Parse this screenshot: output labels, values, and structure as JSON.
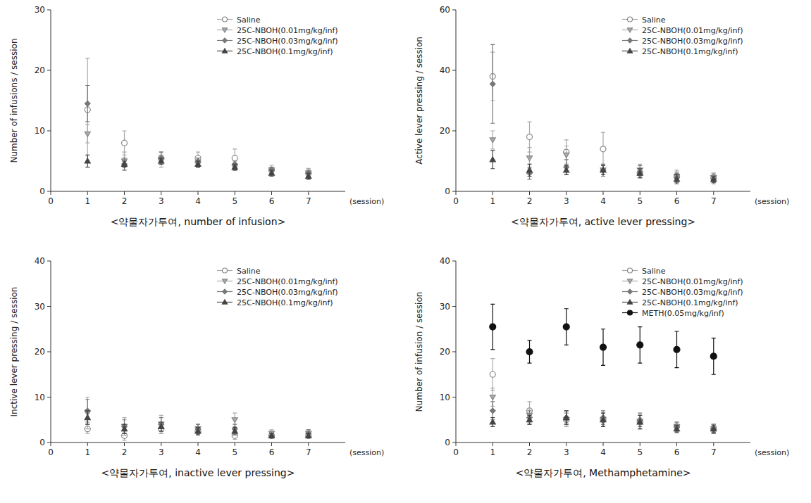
{
  "chart_data": [
    {
      "type": "scatter",
      "title": "<약물자가투여,  number  of  infusion>",
      "xlabel": "(session)",
      "ylabel": "Number of infusions / session",
      "x": [
        1,
        2,
        3,
        4,
        5,
        6,
        7
      ],
      "xlim": [
        0,
        8
      ],
      "xticks": [
        0,
        1,
        2,
        3,
        4,
        5,
        6,
        7
      ],
      "ylim": [
        0,
        30
      ],
      "yticks": [
        0,
        10,
        20,
        30
      ],
      "grid": false,
      "legend": "upper right",
      "series": [
        {
          "name": "Saline",
          "color": "#aaaaaa",
          "marker": "circle-open",
          "values": [
            13.5,
            8.0,
            5.5,
            5.5,
            5.5,
            3.5,
            3.0
          ],
          "errors": [
            8.5,
            2.0,
            1.0,
            1.0,
            1.5,
            0.8,
            0.8
          ]
        },
        {
          "name": "25C-NBOH(0.01mg/kg/inf)",
          "color": "#aaaaaa",
          "marker": "triangle-down",
          "values": [
            9.5,
            5.0,
            5.0,
            4.5,
            4.0,
            3.5,
            3.0
          ],
          "errors": [
            1.5,
            1.5,
            1.0,
            0.5,
            0.5,
            0.5,
            0.5
          ]
        },
        {
          "name": "25C-NBOH(0.03mg/kg/inf)",
          "color": "#777777",
          "marker": "diamond",
          "values": [
            14.5,
            4.5,
            5.5,
            5.0,
            4.5,
            3.5,
            3.0
          ],
          "errors": [
            3.0,
            1.0,
            1.0,
            0.5,
            0.5,
            0.5,
            0.5
          ]
        },
        {
          "name": "25C-NBOH(0.1mg/kg/inf)",
          "color": "#444444",
          "marker": "triangle-up",
          "values": [
            5.0,
            4.5,
            5.0,
            4.5,
            4.0,
            3.0,
            2.5
          ],
          "errors": [
            1.0,
            0.5,
            0.5,
            0.5,
            0.5,
            0.5,
            0.5
          ]
        }
      ]
    },
    {
      "type": "scatter",
      "title": "<약물자가투여,  active  lever  pressing>",
      "xlabel": "(session)",
      "ylabel": "Active lever pressing / session",
      "x": [
        1,
        2,
        3,
        4,
        5,
        6,
        7
      ],
      "xlim": [
        0,
        8
      ],
      "xticks": [
        0,
        1,
        2,
        3,
        4,
        5,
        6,
        7
      ],
      "ylim": [
        0,
        60
      ],
      "yticks": [
        0,
        20,
        40,
        60
      ],
      "grid": false,
      "legend": "upper right",
      "series": [
        {
          "name": "Saline",
          "color": "#aaaaaa",
          "marker": "circle-open",
          "values": [
            38.0,
            18.0,
            13.0,
            14.0,
            6.0,
            5.0,
            4.5
          ],
          "errors": [
            8.0,
            5.0,
            4.0,
            5.5,
            1.5,
            2.0,
            1.5
          ]
        },
        {
          "name": "25C-NBOH(0.01mg/kg/inf)",
          "color": "#aaaaaa",
          "marker": "triangle-down",
          "values": [
            17.0,
            11.0,
            12.0,
            7.0,
            7.0,
            5.0,
            4.5
          ],
          "errors": [
            3.0,
            3.5,
            3.0,
            2.0,
            2.0,
            1.5,
            1.5
          ]
        },
        {
          "name": "25C-NBOH(0.03mg/kg/inf)",
          "color": "#777777",
          "marker": "diamond",
          "values": [
            35.5,
            6.0,
            8.0,
            7.0,
            6.5,
            4.5,
            4.0
          ],
          "errors": [
            13.0,
            2.0,
            2.5,
            2.0,
            2.0,
            1.5,
            1.5
          ]
        },
        {
          "name": "25C-NBOH(0.1mg/kg/inf)",
          "color": "#444444",
          "marker": "triangle-up",
          "values": [
            10.5,
            7.0,
            7.0,
            7.0,
            6.0,
            4.0,
            4.0
          ],
          "errors": [
            3.0,
            2.0,
            1.5,
            1.5,
            1.5,
            1.5,
            1.0
          ]
        }
      ]
    },
    {
      "type": "scatter",
      "title": "<약물자가투여,  inactive  lever  pressing>",
      "xlabel": "(session)",
      "ylabel": "Inctive lever pressing / session",
      "x": [
        1,
        2,
        3,
        4,
        5,
        6,
        7
      ],
      "xlim": [
        0,
        8
      ],
      "xticks": [
        0,
        1,
        2,
        3,
        4,
        5,
        6,
        7
      ],
      "ylim": [
        0,
        40
      ],
      "yticks": [
        0,
        10,
        20,
        30,
        40
      ],
      "grid": false,
      "legend": "upper right",
      "series": [
        {
          "name": "Saline",
          "color": "#aaaaaa",
          "marker": "circle-open",
          "values": [
            3.0,
            1.5,
            3.0,
            2.5,
            1.5,
            1.5,
            1.5
          ],
          "errors": [
            1.0,
            1.0,
            1.0,
            0.8,
            0.8,
            0.5,
            0.5
          ]
        },
        {
          "name": "25C-NBOH(0.01mg/kg/inf)",
          "color": "#aaaaaa",
          "marker": "triangle-down",
          "values": [
            6.5,
            3.5,
            4.0,
            3.0,
            5.0,
            2.0,
            2.0
          ],
          "errors": [
            3.5,
            2.0,
            2.0,
            1.0,
            1.5,
            0.8,
            0.8
          ]
        },
        {
          "name": "25C-NBOH(0.03mg/kg/inf)",
          "color": "#777777",
          "marker": "diamond",
          "values": [
            7.0,
            3.5,
            4.0,
            3.0,
            3.0,
            1.5,
            2.0
          ],
          "errors": [
            2.5,
            1.5,
            1.5,
            1.0,
            1.0,
            0.5,
            0.8
          ]
        },
        {
          "name": "25C-NBOH(0.1mg/kg/inf)",
          "color": "#444444",
          "marker": "triangle-up",
          "values": [
            5.5,
            3.0,
            3.5,
            2.5,
            2.5,
            1.5,
            1.5
          ],
          "errors": [
            1.5,
            1.0,
            1.0,
            0.8,
            0.8,
            0.5,
            0.5
          ]
        }
      ]
    },
    {
      "type": "scatter",
      "title": "<약물자가투여,  Methamphetamine>",
      "xlabel": "(session)",
      "ylabel": "Number of infusion / session",
      "x": [
        1,
        2,
        3,
        4,
        5,
        6,
        7
      ],
      "xlim": [
        0,
        8
      ],
      "xticks": [
        0,
        1,
        2,
        3,
        4,
        5,
        6,
        7
      ],
      "ylim": [
        0,
        40
      ],
      "yticks": [
        0,
        10,
        20,
        30,
        40
      ],
      "grid": false,
      "legend": "upper right",
      "series": [
        {
          "name": "Saline",
          "color": "#aaaaaa",
          "marker": "circle-open",
          "values": [
            15.0,
            7.0,
            5.0,
            5.0,
            4.5,
            3.5,
            3.0
          ],
          "errors": [
            3.5,
            2.0,
            1.5,
            1.5,
            1.5,
            1.0,
            1.0
          ]
        },
        {
          "name": "25C-NBOH(0.01mg/kg/inf)",
          "color": "#aaaaaa",
          "marker": "triangle-down",
          "values": [
            10.0,
            6.0,
            5.0,
            5.0,
            4.5,
            3.5,
            3.0
          ],
          "errors": [
            2.0,
            1.5,
            1.5,
            1.5,
            1.5,
            1.0,
            1.0
          ]
        },
        {
          "name": "25C-NBOH(0.03mg/kg/inf)",
          "color": "#777777",
          "marker": "diamond",
          "values": [
            7.0,
            5.5,
            5.5,
            5.5,
            5.0,
            3.5,
            3.0
          ],
          "errors": [
            2.0,
            1.5,
            1.5,
            1.5,
            1.5,
            1.0,
            1.0
          ]
        },
        {
          "name": "25C-NBOH(0.1mg/kg/inf)",
          "color": "#444444",
          "marker": "triangle-up",
          "values": [
            4.5,
            5.0,
            5.5,
            5.0,
            4.5,
            3.0,
            3.0
          ],
          "errors": [
            1.0,
            1.0,
            1.5,
            1.5,
            1.5,
            0.8,
            0.8
          ]
        },
        {
          "name": "METH(0.05mg/kg/inf)",
          "color": "#111111",
          "marker": "circle",
          "values": [
            25.5,
            20.0,
            25.5,
            21.0,
            21.5,
            20.5,
            19.0
          ],
          "errors": [
            5.0,
            2.5,
            4.0,
            4.0,
            4.0,
            4.0,
            4.0
          ]
        }
      ]
    }
  ]
}
